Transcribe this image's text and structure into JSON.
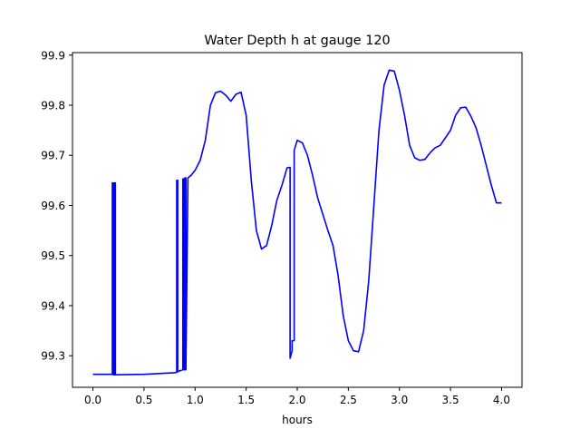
{
  "chart_data": {
    "type": "line",
    "title": "Water Depth h at gauge 120",
    "xlabel": "hours",
    "ylabel": "",
    "xlim": [
      -0.2,
      4.2
    ],
    "ylim": [
      99.237,
      99.905
    ],
    "xticks": [
      0.0,
      0.5,
      1.0,
      1.5,
      2.0,
      2.5,
      3.0,
      3.5,
      4.0
    ],
    "xtick_labels": [
      "0.0",
      "0.5",
      "1.0",
      "1.5",
      "2.0",
      "2.5",
      "3.0",
      "3.5",
      "4.0"
    ],
    "yticks": [
      99.3,
      99.4,
      99.5,
      99.6,
      99.7,
      99.8,
      99.9
    ],
    "ytick_labels": [
      "99.3",
      "99.4",
      "99.5",
      "99.6",
      "99.7",
      "99.8",
      "99.9"
    ],
    "grid": false,
    "color": "#0000ff",
    "series": [
      {
        "x": [
          0.0,
          0.19,
          0.19,
          0.2,
          0.2,
          0.21,
          0.21,
          0.22,
          0.22,
          0.5,
          0.8,
          0.82,
          0.82,
          0.83,
          0.83,
          0.85,
          0.85,
          0.88,
          0.88,
          0.89,
          0.89,
          0.9,
          0.9,
          0.91,
          0.91,
          0.93,
          0.96,
          1.0,
          1.05,
          1.1,
          1.15,
          1.2,
          1.25,
          1.3,
          1.35,
          1.4,
          1.45,
          1.5,
          1.55,
          1.6,
          1.65,
          1.7,
          1.75,
          1.8,
          1.85,
          1.9,
          1.93,
          1.93,
          1.95,
          1.95,
          1.97,
          1.97,
          2.0,
          2.05,
          2.1,
          2.15,
          2.2,
          2.3,
          2.35,
          2.4,
          2.45,
          2.5,
          2.55,
          2.6,
          2.65,
          2.7,
          2.75,
          2.8,
          2.85,
          2.9,
          2.95,
          3.0,
          3.05,
          3.1,
          3.15,
          3.2,
          3.25,
          3.3,
          3.35,
          3.4,
          3.45,
          3.5,
          3.55,
          3.6,
          3.65,
          3.7,
          3.75,
          3.8,
          3.85,
          3.9,
          3.95,
          4.0
        ],
        "y": [
          99.263,
          99.263,
          99.645,
          99.645,
          99.262,
          99.262,
          99.645,
          99.645,
          99.262,
          99.263,
          99.266,
          99.267,
          99.65,
          99.65,
          99.268,
          99.27,
          99.27,
          99.272,
          99.653,
          99.653,
          99.272,
          99.272,
          99.655,
          99.655,
          99.272,
          99.655,
          99.66,
          99.67,
          99.69,
          99.73,
          99.8,
          99.825,
          99.828,
          99.82,
          99.808,
          99.822,
          99.826,
          99.78,
          99.65,
          99.55,
          99.513,
          99.52,
          99.56,
          99.61,
          99.64,
          99.675,
          99.676,
          99.295,
          99.31,
          99.33,
          99.33,
          99.71,
          99.73,
          99.725,
          99.7,
          99.66,
          99.615,
          99.55,
          99.52,
          99.46,
          99.38,
          99.33,
          99.31,
          99.308,
          99.35,
          99.45,
          99.6,
          99.75,
          99.84,
          99.87,
          99.868,
          99.83,
          99.78,
          99.72,
          99.695,
          99.69,
          99.692,
          99.705,
          99.715,
          99.72,
          99.735,
          99.75,
          99.78,
          99.795,
          99.796,
          99.778,
          99.755,
          99.72,
          99.68,
          99.64,
          99.605,
          99.605
        ]
      }
    ]
  }
}
